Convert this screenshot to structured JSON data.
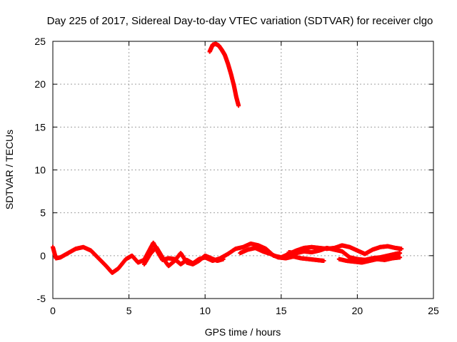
{
  "chart_data": {
    "type": "scatter",
    "title": "Day 225 of 2017, Sidereal Day-to-day VTEC variation (SDTVAR) for receiver clgo",
    "xlabel": "GPS time / hours",
    "ylabel": "SDTVAR / TECUs",
    "xlim": [
      0,
      25
    ],
    "ylim": [
      -5,
      25
    ],
    "xticks": [
      0,
      5,
      10,
      15,
      20,
      25
    ],
    "yticks": [
      -5,
      0,
      5,
      10,
      15,
      20,
      25
    ],
    "xtick_labels": [
      "0",
      "5",
      "10",
      "15",
      "20",
      "25"
    ],
    "ytick_labels": [
      "-5",
      "0",
      "5",
      "10",
      "15",
      "20",
      "25"
    ],
    "grid": true,
    "marker": "+",
    "series": [
      {
        "name": "SDTVAR",
        "color": "#ff0000",
        "segments": [
          {
            "x": [
              0.0,
              0.2,
              0.5,
              1.0,
              1.5,
              2.0,
              2.5,
              3.0,
              3.5,
              3.9,
              4.3,
              4.8,
              5.2,
              5.6,
              6.0,
              6.3,
              6.6,
              6.9,
              7.2,
              7.6,
              8.0,
              8.4,
              8.8,
              9.2,
              9.6,
              10.0,
              10.5,
              11.0,
              11.5,
              12.0,
              12.5,
              13.0,
              13.5,
              14.0,
              14.5,
              15.0,
              15.5,
              16.0,
              16.5,
              17.0,
              17.5,
              18.0,
              18.5,
              19.0,
              19.5,
              20.0,
              20.5,
              21.0,
              21.5,
              22.0,
              22.5,
              22.9
            ],
            "y": [
              1.0,
              -0.3,
              -0.2,
              0.3,
              0.8,
              1.0,
              0.6,
              -0.3,
              -1.2,
              -2.0,
              -1.5,
              -0.4,
              0.0,
              -0.8,
              -0.5,
              0.5,
              1.5,
              0.4,
              -0.5,
              -0.3,
              -0.4,
              -1.0,
              -0.5,
              -0.9,
              -0.4,
              -0.2,
              -0.6,
              -0.3,
              0.2,
              0.8,
              1.0,
              1.4,
              1.2,
              0.8,
              0.0,
              -0.2,
              0.2,
              0.6,
              0.9,
              1.0,
              0.9,
              0.8,
              0.9,
              1.2,
              1.0,
              0.6,
              0.2,
              0.7,
              1.0,
              1.1,
              0.9,
              0.8
            ]
          },
          {
            "x": [
              6.0,
              6.4,
              6.8,
              7.2,
              7.6,
              8.0,
              8.4,
              8.8,
              9.2,
              9.6,
              10.0,
              10.4,
              10.8,
              11.2
            ],
            "y": [
              -1.0,
              0.2,
              1.0,
              -0.2,
              -1.2,
              -0.6,
              0.3,
              -0.8,
              -1.0,
              -0.6,
              0.0,
              -0.3,
              -0.6,
              -0.4
            ]
          },
          {
            "x": [
              12.3,
              12.8,
              13.3,
              13.8,
              14.3,
              14.8,
              15.3,
              15.8,
              16.3,
              16.8,
              17.3,
              17.8
            ],
            "y": [
              0.3,
              0.7,
              0.9,
              0.5,
              0.2,
              -0.2,
              -0.3,
              -0.1,
              -0.3,
              -0.4,
              -0.5,
              -0.6
            ]
          },
          {
            "x": [
              15.5,
              16.0,
              16.5,
              17.0,
              17.5,
              18.0,
              18.5,
              19.0,
              19.5,
              20.0,
              20.5,
              21.0,
              21.5,
              22.0,
              22.5,
              22.8
            ],
            "y": [
              0.4,
              0.3,
              0.5,
              0.4,
              0.6,
              0.9,
              0.7,
              0.5,
              -0.2,
              -0.4,
              -0.5,
              -0.3,
              -0.2,
              0.0,
              0.2,
              0.3
            ]
          },
          {
            "x": [
              18.8,
              19.3,
              19.8,
              20.3,
              20.8,
              21.3,
              21.8,
              22.3,
              22.8
            ],
            "y": [
              -0.4,
              -0.6,
              -0.7,
              -0.8,
              -0.6,
              -0.4,
              -0.5,
              -0.3,
              -0.2
            ]
          },
          {
            "x": [
              10.3,
              10.5,
              10.7,
              10.9,
              11.1,
              11.3,
              11.5,
              11.7,
              11.9,
              12.05,
              12.2
            ],
            "y": [
              23.8,
              24.6,
              24.7,
              24.5,
              24.0,
              23.4,
              22.4,
              21.2,
              19.8,
              18.5,
              17.5
            ]
          }
        ]
      }
    ]
  }
}
